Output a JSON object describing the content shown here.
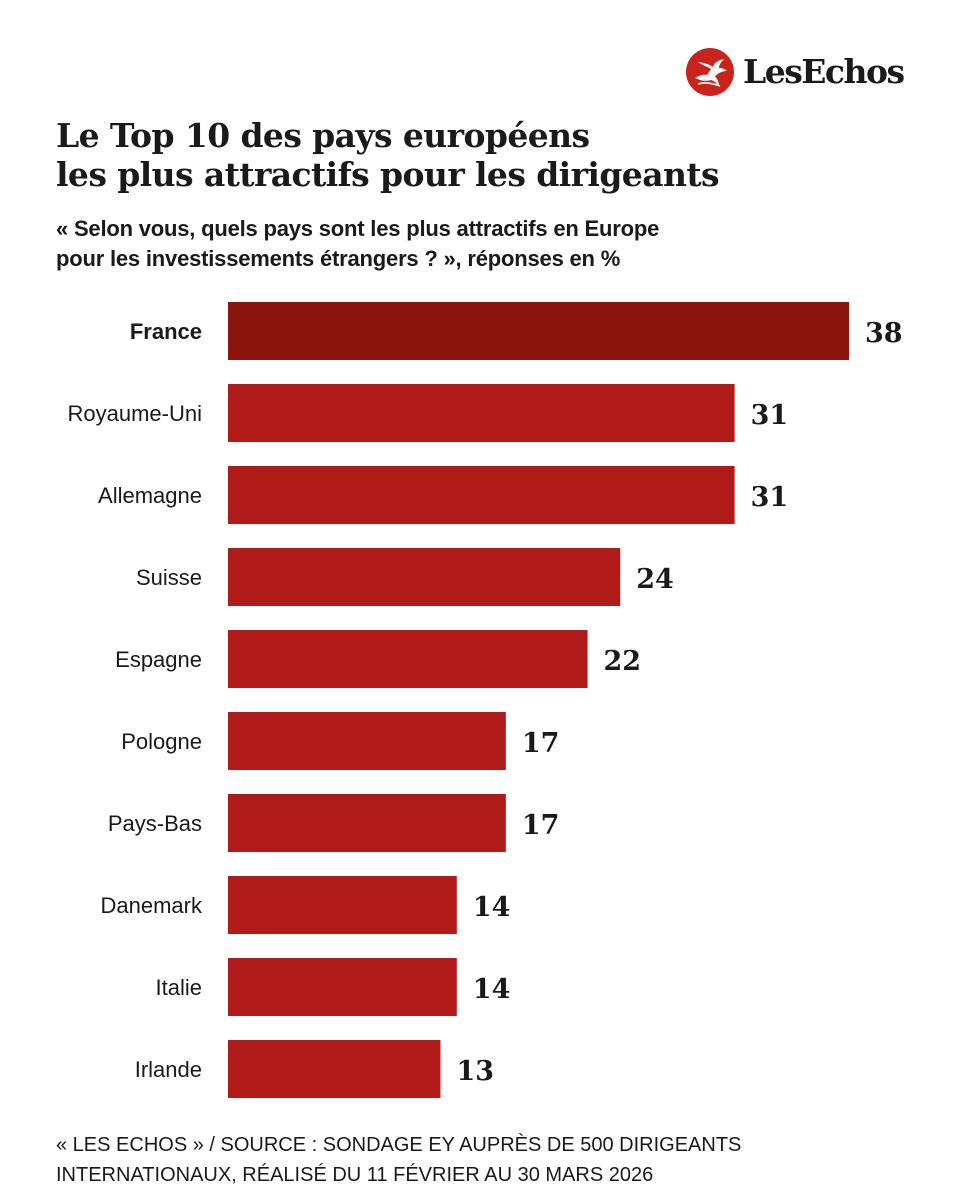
{
  "brand": {
    "name": "LesEchos",
    "logo_icon": "pegasus-icon",
    "logo_color": "#c8241c"
  },
  "header": {
    "title_lines": [
      "Le Top 10 des pays européens",
      "les plus attractifs pour les dirigeants"
    ],
    "subtitle_lines": [
      "« Selon vous, quels pays sont les plus attractifs en Europe",
      "pour les investissements étrangers ? », réponses en %"
    ]
  },
  "chart_data": {
    "type": "bar",
    "orientation": "horizontal",
    "categories": [
      "France",
      "Royaume-Uni",
      "Allemagne",
      "Suisse",
      "Espagne",
      "Pologne",
      "Pays-Bas",
      "Danemark",
      "Italie",
      "Irlande"
    ],
    "values": [
      38,
      31,
      31,
      24,
      22,
      17,
      17,
      14,
      14,
      13
    ],
    "highlight": "France",
    "colors": {
      "bar": "#b01a19",
      "highlight_bar": "#8c140e"
    },
    "grid": false,
    "legend": "none",
    "xlim": [
      0,
      38
    ]
  },
  "footer": {
    "source_lines": [
      "« LES ECHOS » / SOURCE : SONDAGE EY AUPRÈS DE 500 DIRIGEANTS",
      "INTERNATIONAUX, RÉALISÉ DU 11 FÉVRIER AU 30 MARS 2026"
    ]
  }
}
